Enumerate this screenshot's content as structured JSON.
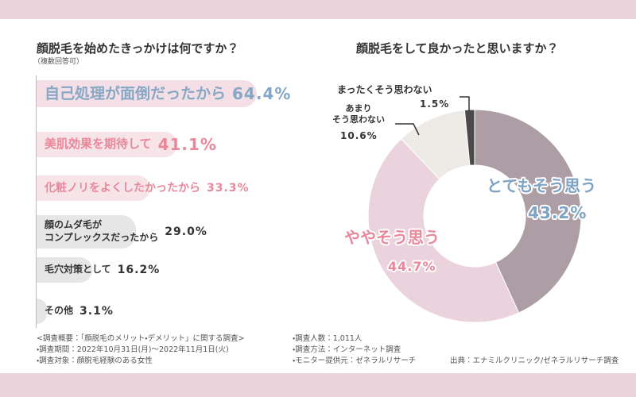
{
  "chart_data": [
    {
      "type": "bar",
      "orientation": "horizontal",
      "title": "顔脱毛を始めたきっかけは何ですか？",
      "subtitle": "（複数回答可）",
      "categories": [
        "自己処理が面倒だったから",
        "美肌効果を期待して",
        "化粧ノリをよくしたかったから",
        "顔のムダ毛が\nコンプレックスだったから",
        "毛穴対策として",
        "その他"
      ],
      "values": [
        64.4,
        41.1,
        33.3,
        29.0,
        16.2,
        3.1
      ],
      "value_labels": [
        "64.4%",
        "41.1%",
        "33.3%",
        "29.0%",
        "16.2%",
        "3.1%"
      ],
      "colors": [
        "#f3dfe5",
        "#f6e4e9",
        "#f6e4e9",
        "#e6e6e6",
        "#e6e6e6",
        "#e6e6e6"
      ],
      "label_colors": [
        "#86a8c4",
        "#e8889a",
        "#e8889a",
        "#333333",
        "#333333",
        "#333333"
      ]
    },
    {
      "type": "donut",
      "title": "顔脱毛をして良かったと思いますか？",
      "categories": [
        "とてもそう思う",
        "ややそう思う",
        "あまり\nそう思わない",
        "まったくそう思わない"
      ],
      "values": [
        43.2,
        44.7,
        10.6,
        1.5
      ],
      "value_labels": [
        "43.2%",
        "44.7%",
        "10.6%",
        "1.5%"
      ],
      "colors": [
        "#ad9ea6",
        "#ebd3dd",
        "#eeeae5",
        "#4a4a4a"
      ],
      "label_colors": [
        "#7fa3c2",
        "#e8889a",
        "#333333",
        "#333333"
      ]
    }
  ],
  "notes": {
    "left": [
      "<調査概要：「顔脱毛のメリット・デメリット」に関する調査>",
      "・調査期間：2022年10月31日(月)〜2022年11月1日(火)",
      "・調査対象：顔脱毛経験のある女性"
    ],
    "right": [
      "・調査人数：1,011人",
      "・調査方法：インターネット調査",
      "・モニター提供元：ゼネラルリサーチ"
    ],
    "source": "出典：エナミルクリニック/ゼネラルリサーチ調査"
  }
}
